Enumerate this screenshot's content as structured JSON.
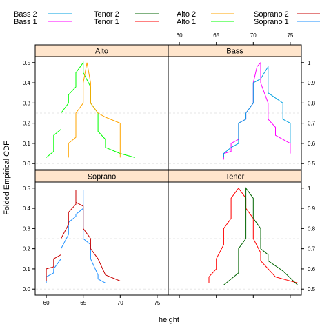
{
  "chart_data": {
    "type": "line",
    "title": "",
    "xlabel": "height",
    "ylabel": "Folded Empirical CDF",
    "xlim": [
      58.5,
      76.5
    ],
    "ylim": [
      -0.03,
      0.53
    ],
    "x_ticks_bottom": [
      "60",
      "65",
      "70",
      "75"
    ],
    "x_ticks_top": [
      "60",
      "65",
      "70",
      "75"
    ],
    "y_ticks_left": [
      "0.0",
      "0.1",
      "0.2",
      "0.3",
      "0.4",
      "0.5"
    ],
    "y_ticks_right": [
      "0.5",
      "0.6",
      "0.7",
      "0.8",
      "0.9",
      "1"
    ],
    "reference_line_y": [
      0.0,
      0.25
    ],
    "legend": {
      "placement": "top",
      "entries": [
        {
          "name": "Bass 2",
          "color": "#00a0e0"
        },
        {
          "name": "Bass 1",
          "color": "#ff00ff"
        },
        {
          "name": "Tenor 2",
          "color": "#006400"
        },
        {
          "name": "Tenor 1",
          "color": "#ff0000"
        },
        {
          "name": "Alto 2",
          "color": "#ffa500"
        },
        {
          "name": "Alto 1",
          "color": "#00ff00"
        },
        {
          "name": "Soprano 2",
          "color": "#c80000"
        },
        {
          "name": "Soprano 1",
          "color": "#1e90ff"
        }
      ]
    },
    "panels": [
      {
        "label": "Alto",
        "series": [
          {
            "name": "Alto 1",
            "color": "#00ff00",
            "points": [
              [
                60,
                0.03
              ],
              [
                61,
                0.06
              ],
              [
                61,
                0.14
              ],
              [
                62,
                0.17
              ],
              [
                62,
                0.25
              ],
              [
                63,
                0.3
              ],
              [
                63,
                0.34
              ],
              [
                64,
                0.38
              ],
              [
                64,
                0.45
              ],
              [
                65,
                0.5
              ],
              [
                65,
                0.45
              ],
              [
                66,
                0.38
              ],
              [
                66,
                0.3
              ],
              [
                67,
                0.25
              ],
              [
                67,
                0.16
              ],
              [
                68,
                0.12
              ],
              [
                68,
                0.08
              ],
              [
                70,
                0.05
              ],
              [
                72,
                0.03
              ]
            ]
          },
          {
            "name": "Alto 2",
            "color": "#ffa500",
            "points": [
              [
                63,
                0.03
              ],
              [
                63,
                0.1
              ],
              [
                64,
                0.13
              ],
              [
                64,
                0.25
              ],
              [
                65,
                0.3
              ],
              [
                65,
                0.4
              ],
              [
                65.5,
                0.5
              ],
              [
                66,
                0.4
              ],
              [
                66,
                0.3
              ],
              [
                67,
                0.25
              ],
              [
                68,
                0.23
              ],
              [
                70,
                0.2
              ],
              [
                70,
                0.1
              ],
              [
                70,
                0.03
              ]
            ]
          }
        ]
      },
      {
        "label": "Bass",
        "series": [
          {
            "name": "Bass 1",
            "color": "#ff00ff",
            "points": [
              [
                66,
                0.02
              ],
              [
                66,
                0.05
              ],
              [
                67,
                0.06
              ],
              [
                67,
                0.1
              ],
              [
                68,
                0.12
              ],
              [
                68,
                0.2
              ],
              [
                69,
                0.22
              ],
              [
                69,
                0.25
              ],
              [
                70,
                0.3
              ],
              [
                70,
                0.4
              ],
              [
                70.5,
                0.48
              ],
              [
                71,
                0.5
              ],
              [
                71,
                0.4
              ],
              [
                72,
                0.3
              ],
              [
                72,
                0.22
              ],
              [
                73,
                0.18
              ],
              [
                73,
                0.14
              ],
              [
                75,
                0.1
              ],
              [
                75,
                0.05
              ]
            ]
          },
          {
            "name": "Bass 2",
            "color": "#00a0e0",
            "points": [
              [
                66,
                0.03
              ],
              [
                66,
                0.05
              ],
              [
                67,
                0.08
              ],
              [
                68,
                0.1
              ],
              [
                68,
                0.2
              ],
              [
                69,
                0.22
              ],
              [
                69,
                0.25
              ],
              [
                70,
                0.3
              ],
              [
                70,
                0.4
              ],
              [
                71,
                0.42
              ],
              [
                72,
                0.48
              ],
              [
                72,
                0.35
              ],
              [
                74,
                0.3
              ],
              [
                74,
                0.22
              ],
              [
                75,
                0.2
              ],
              [
                75,
                0.15
              ],
              [
                75,
                0.1
              ]
            ]
          }
        ]
      },
      {
        "label": "Soprano",
        "series": [
          {
            "name": "Soprano 1",
            "color": "#1e90ff",
            "points": [
              [
                60,
                0.03
              ],
              [
                60,
                0.06
              ],
              [
                61,
                0.08
              ],
              [
                61,
                0.1
              ],
              [
                62,
                0.15
              ],
              [
                62,
                0.2
              ],
              [
                63,
                0.27
              ],
              [
                63,
                0.33
              ],
              [
                64,
                0.36
              ],
              [
                64,
                0.37
              ],
              [
                65,
                0.4
              ],
              [
                65,
                0.49
              ],
              [
                65,
                0.25
              ],
              [
                66,
                0.22
              ],
              [
                66,
                0.15
              ],
              [
                67,
                0.07
              ],
              [
                67,
                0.05
              ],
              [
                68,
                0.03
              ]
            ]
          },
          {
            "name": "Soprano 2",
            "color": "#c80000",
            "points": [
              [
                60,
                0.04
              ],
              [
                60,
                0.1
              ],
              [
                61,
                0.11
              ],
              [
                61,
                0.15
              ],
              [
                62,
                0.17
              ],
              [
                62,
                0.25
              ],
              [
                63,
                0.32
              ],
              [
                63,
                0.38
              ],
              [
                64,
                0.42
              ],
              [
                64,
                0.47
              ],
              [
                64,
                0.49
              ],
              [
                64,
                0.43
              ],
              [
                65,
                0.41
              ],
              [
                65,
                0.3
              ],
              [
                66,
                0.25
              ],
              [
                66,
                0.2
              ],
              [
                67,
                0.15
              ],
              [
                68,
                0.07
              ],
              [
                70,
                0.04
              ]
            ]
          }
        ]
      },
      {
        "label": "Tenor",
        "series": [
          {
            "name": "Tenor 1",
            "color": "#ff0000",
            "points": [
              [
                64,
                0.03
              ],
              [
                64,
                0.06
              ],
              [
                65,
                0.1
              ],
              [
                65,
                0.15
              ],
              [
                66,
                0.22
              ],
              [
                66,
                0.3
              ],
              [
                67,
                0.35
              ],
              [
                67,
                0.45
              ],
              [
                68,
                0.5
              ],
              [
                69,
                0.45
              ],
              [
                69,
                0.4
              ],
              [
                70,
                0.35
              ],
              [
                70,
                0.25
              ],
              [
                71,
                0.18
              ],
              [
                71,
                0.14
              ],
              [
                72,
                0.1
              ],
              [
                73,
                0.06
              ],
              [
                76,
                0.03
              ]
            ]
          },
          {
            "name": "Tenor 2",
            "color": "#006400",
            "points": [
              [
                66,
                0.02
              ],
              [
                67,
                0.05
              ],
              [
                68,
                0.08
              ],
              [
                68,
                0.2
              ],
              [
                69,
                0.25
              ],
              [
                69,
                0.5
              ],
              [
                70,
                0.45
              ],
              [
                70,
                0.35
              ],
              [
                71,
                0.3
              ],
              [
                71,
                0.2
              ],
              [
                72,
                0.17
              ],
              [
                72,
                0.14
              ],
              [
                74,
                0.09
              ],
              [
                76,
                0.02
              ]
            ]
          }
        ]
      }
    ]
  }
}
